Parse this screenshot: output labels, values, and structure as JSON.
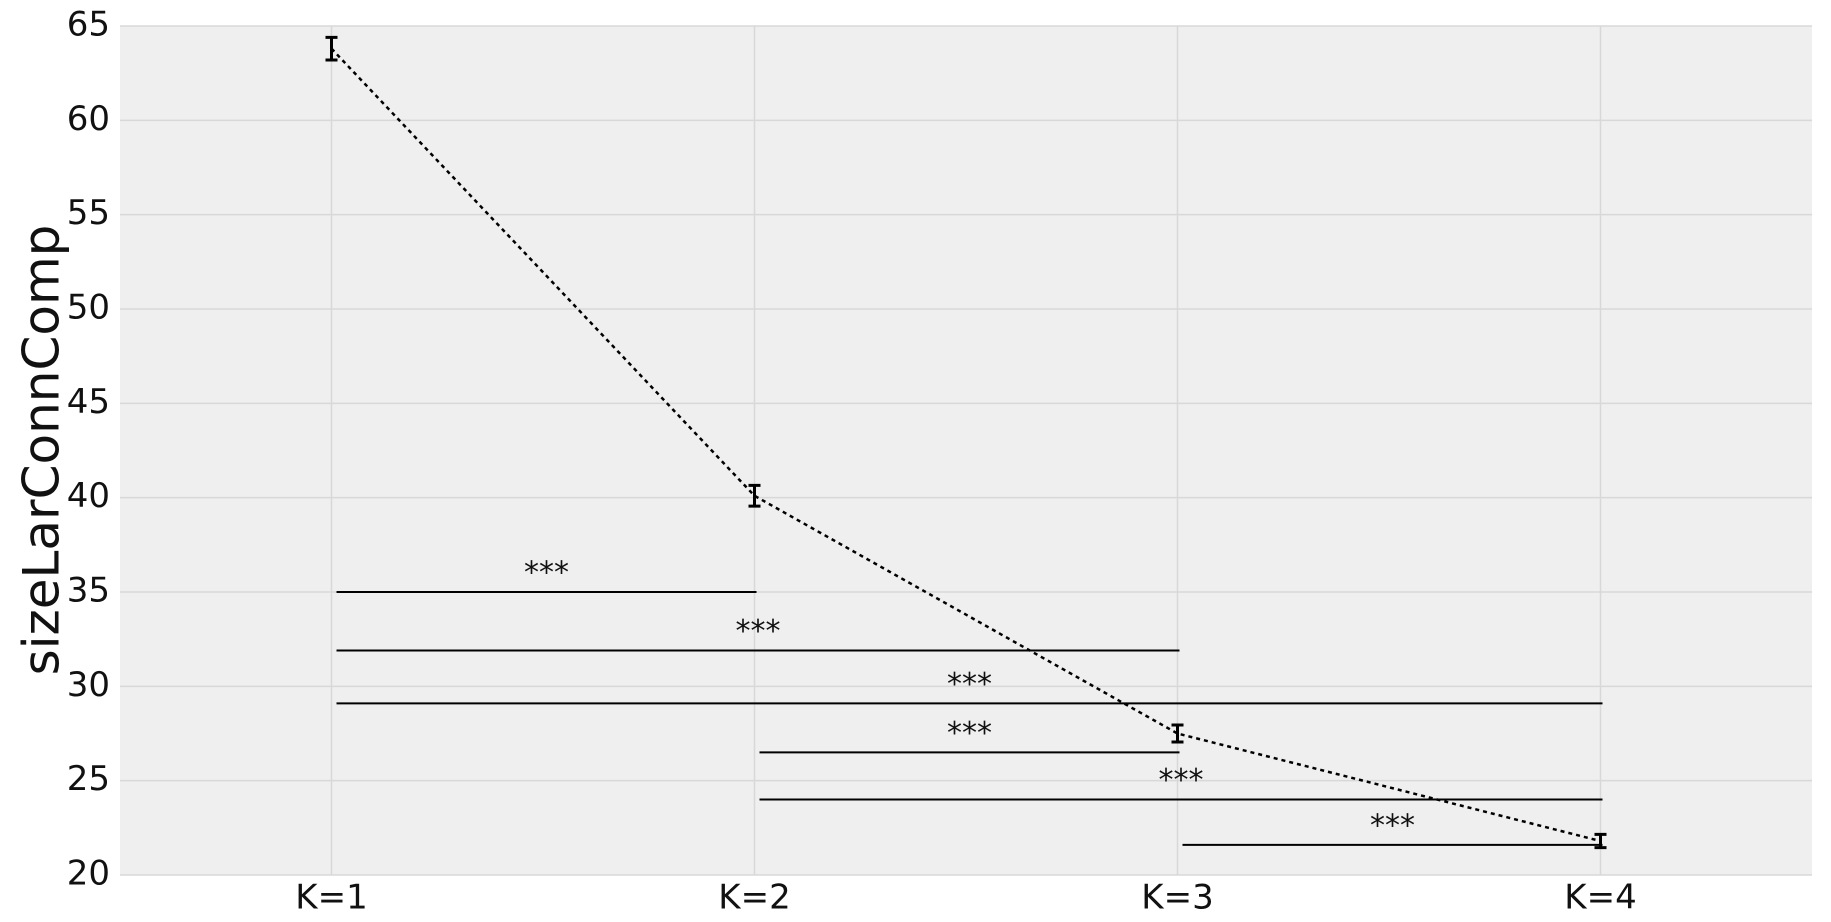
{
  "chart_data": {
    "type": "line",
    "y_label": "sizeLarConnComp",
    "categories": [
      "K=1",
      "K=2",
      "K=3",
      "K=4"
    ],
    "series": [
      {
        "color": "#000000",
        "values": [
          63.8,
          40.1,
          27.5,
          21.8
        ],
        "errors": [
          0.6,
          0.55,
          0.45,
          0.35
        ]
      }
    ],
    "ylim": [
      20,
      65
    ],
    "yticks": [
      20,
      25,
      30,
      35,
      40,
      45,
      50,
      55,
      60,
      65
    ],
    "grid": true,
    "annotations": [
      {
        "from": 0,
        "to": 1,
        "y": 35,
        "label": "***"
      },
      {
        "from": 0,
        "to": 2,
        "y": 31.9,
        "label": "***"
      },
      {
        "from": 0,
        "to": 3,
        "y": 29.1,
        "label": "***"
      },
      {
        "from": 1,
        "to": 2,
        "y": 26.5,
        "label": "***"
      },
      {
        "from": 1,
        "to": 3,
        "y": 24,
        "label": "***"
      },
      {
        "from": 2,
        "to": 3,
        "y": 21.6,
        "label": "***"
      }
    ]
  }
}
